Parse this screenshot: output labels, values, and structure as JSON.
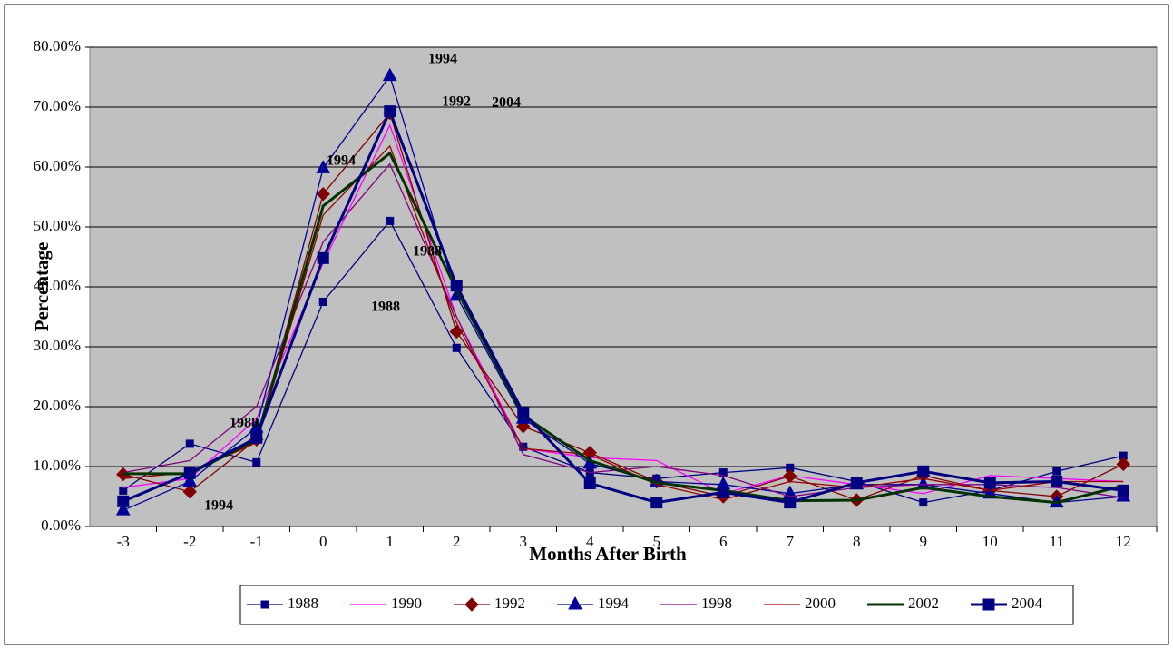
{
  "chart_data": {
    "type": "line",
    "x_label": "Months After Birth",
    "y_label": "Percentage",
    "categories": [
      "-3",
      "-2",
      "-1",
      "0",
      "1",
      "2",
      "3",
      "4",
      "5",
      "6",
      "7",
      "8",
      "9",
      "10",
      "11",
      "12"
    ],
    "ylim": [
      0,
      80
    ],
    "yticks": [
      {
        "value": 0,
        "label": "0.00%"
      },
      {
        "value": 10,
        "label": "10.00%"
      },
      {
        "value": 20,
        "label": "20.00%"
      },
      {
        "value": 30,
        "label": "30.00%"
      },
      {
        "value": 40,
        "label": "40.00%"
      },
      {
        "value": 50,
        "label": "50.00%"
      },
      {
        "value": 60,
        "label": "60.00%"
      },
      {
        "value": 70,
        "label": "70.00%"
      },
      {
        "value": 80,
        "label": "80.00%"
      }
    ],
    "grid": true,
    "series": [
      {
        "name": "1988",
        "color": "#000080",
        "marker": "square",
        "values": [
          6,
          13.8,
          10.7,
          37.5,
          51,
          29.8,
          13.3,
          9,
          8,
          9,
          9.8,
          7.5,
          4,
          6,
          9.2,
          11.8
        ]
      },
      {
        "name": "1990",
        "color": "#ff00ff",
        "values": [
          6.5,
          8,
          18,
          44,
          67,
          35,
          13,
          11.5,
          11,
          5.5,
          8.5,
          7,
          5.5,
          8.5,
          8,
          7.5
        ]
      },
      {
        "name": "1992",
        "color": "#800000",
        "marker": "diamond",
        "values": [
          8.7,
          5.8,
          14.5,
          55.5,
          69,
          32.5,
          16.7,
          12.3,
          7.5,
          5,
          8.4,
          4.4,
          8.5,
          6,
          5,
          10.4
        ]
      },
      {
        "name": "1994",
        "color": "#000099",
        "marker": "triangle",
        "values": [
          2.7,
          7.5,
          16.5,
          59.8,
          75.2,
          38.5,
          18,
          10.5,
          7.5,
          7,
          5.5,
          7,
          7,
          5.5,
          4,
          5
        ]
      },
      {
        "name": "1998",
        "color": "#800080",
        "values": [
          9,
          11,
          20,
          47.5,
          60.5,
          35,
          12,
          9,
          10,
          8.5,
          5,
          6.5,
          7,
          7,
          6.5,
          4.8
        ]
      },
      {
        "name": "2000",
        "color": "#990000",
        "values": [
          8,
          9,
          14,
          52,
          63.5,
          34,
          13,
          12,
          7,
          4.5,
          7.5,
          6.5,
          8,
          6,
          7.5,
          7.5
        ]
      },
      {
        "name": "2002",
        "color": "#003300",
        "width": 3,
        "values": [
          8.8,
          8.8,
          14.5,
          53.5,
          62.3,
          39.5,
          18.5,
          11,
          7.3,
          6,
          4.3,
          4.4,
          6.5,
          5,
          4,
          6.8
        ]
      },
      {
        "name": "2004",
        "color": "#000080",
        "marker": "big-square",
        "width": 3,
        "values": [
          4.2,
          8.9,
          14.8,
          44.8,
          69.3,
          40.2,
          19,
          7.2,
          4,
          5.7,
          4,
          7.3,
          9.2,
          7.3,
          7.5,
          6
        ]
      }
    ],
    "annotations": [
      "1994",
      "1992",
      "2004",
      "1994",
      "1988",
      "1988",
      "1988",
      "1994"
    ]
  }
}
